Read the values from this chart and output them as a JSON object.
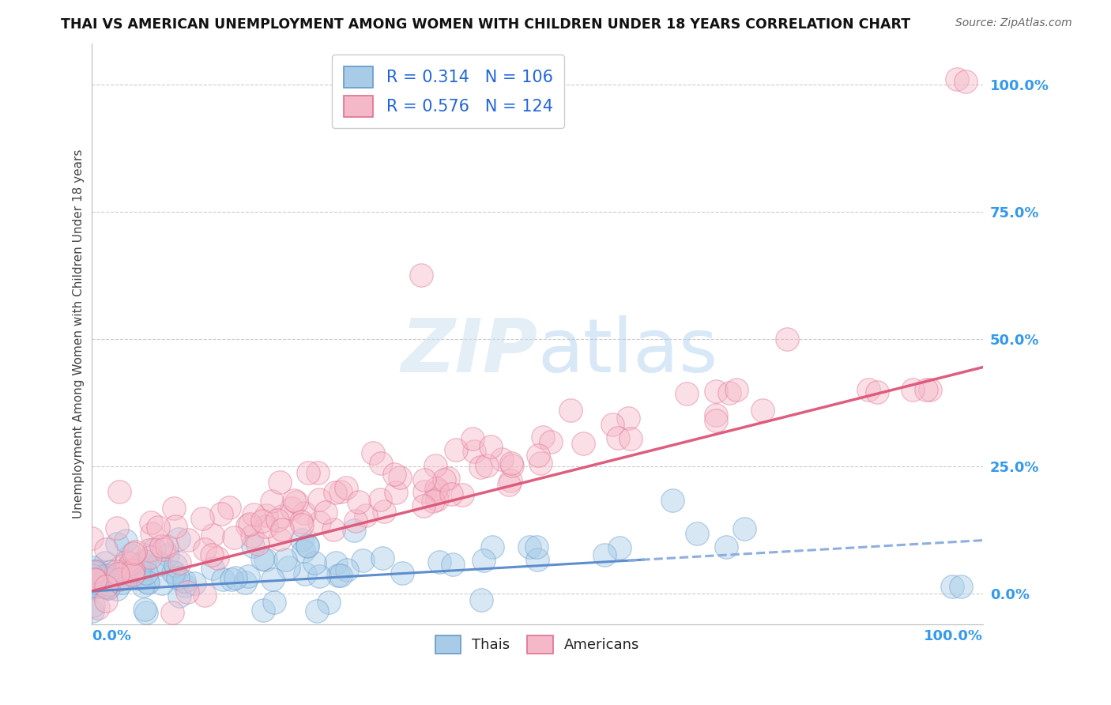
{
  "title": "THAI VS AMERICAN UNEMPLOYMENT AMONG WOMEN WITH CHILDREN UNDER 18 YEARS CORRELATION CHART",
  "source": "Source: ZipAtlas.com",
  "ylabel": "Unemployment Among Women with Children Under 18 years",
  "right_yticklabels": [
    "0.0%",
    "25.0%",
    "50.0%",
    "75.0%",
    "100.0%"
  ],
  "right_ytick_vals": [
    0.0,
    0.25,
    0.5,
    0.75,
    1.0
  ],
  "color_thai": "#a8cce8",
  "color_thai_edge": "#6699cc",
  "color_american": "#f5b8c8",
  "color_american_edge": "#e07090",
  "color_thai_line_solid": "#5588cc",
  "color_thai_line_dash": "#88aadd",
  "color_american_line": "#dd5577",
  "background_color": "#ffffff",
  "thai_N": 106,
  "american_N": 124,
  "thai_slope": 0.1,
  "thai_intercept": 0.005,
  "american_slope": 0.44,
  "american_intercept": 0.005,
  "ylim_min": -0.06,
  "ylim_max": 1.08,
  "seed": 7
}
